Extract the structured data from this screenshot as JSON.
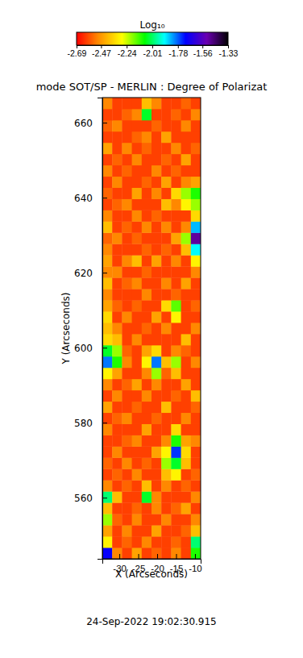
{
  "chart_data": {
    "type": "heatmap",
    "title": "mode SOT/SP - MERLIN : Degree of Polarizat",
    "annotation": "24-Sep-2022 19:02:30.915",
    "x_label": "X (Arcseconds)",
    "y_label": "Y (Arcseconds)",
    "colorbar_title": "Log₁₀",
    "color_range": [
      -2.69,
      -1.33
    ],
    "color_ticks": [
      -2.69,
      -2.47,
      -2.24,
      -2.01,
      -1.78,
      -1.56,
      -1.33
    ],
    "xlim": [
      -34.5,
      -8.5
    ],
    "ylim": [
      543.7,
      666.7
    ],
    "xticks": [
      -30,
      -25,
      -20,
      -15,
      -10
    ],
    "yticks": [
      560,
      580,
      600,
      620,
      640,
      660
    ],
    "x": [
      -33.2,
      -30.6,
      -28.0,
      -25.4,
      -22.8,
      -20.2,
      -17.6,
      -15.0,
      -12.4,
      -9.8
    ],
    "y": [
      545.2,
      548.2,
      551.2,
      554.2,
      557.2,
      560.2,
      563.2,
      566.2,
      569.2,
      572.2,
      575.2,
      578.2,
      581.2,
      584.2,
      587.2,
      590.2,
      593.2,
      596.2,
      599.2,
      602.2,
      605.2,
      608.2,
      611.2,
      614.2,
      617.2,
      620.2,
      623.2,
      626.2,
      629.2,
      632.2,
      635.2,
      638.2,
      641.2,
      644.2,
      647.2,
      650.2,
      653.2,
      656.2,
      659.2,
      662.2,
      665.2
    ],
    "values": [
      [
        -1.7,
        -2.5,
        -2.6,
        -2.45,
        -2.6,
        -2.55,
        -2.6,
        -2.5,
        -2.6,
        -2.1
      ],
      [
        -2.3,
        -2.6,
        -2.55,
        -2.6,
        -2.5,
        -2.6,
        -2.6,
        -2.55,
        -2.6,
        -2.0
      ],
      [
        -2.45,
        -2.6,
        -2.5,
        -2.6,
        -2.6,
        -2.45,
        -2.6,
        -2.6,
        -2.55,
        -2.4
      ],
      [
        -2.2,
        -2.55,
        -2.6,
        -2.5,
        -2.6,
        -2.6,
        -2.5,
        -2.6,
        -2.6,
        -2.5
      ],
      [
        -2.4,
        -2.6,
        -2.6,
        -2.55,
        -2.6,
        -2.5,
        -2.6,
        -2.55,
        -2.45,
        -2.6
      ],
      [
        -2.0,
        -2.4,
        -2.6,
        -2.6,
        -2.05,
        -2.5,
        -2.6,
        -2.6,
        -2.6,
        -2.5
      ],
      [
        -2.5,
        -2.6,
        -2.55,
        -2.6,
        -2.4,
        -2.6,
        -2.5,
        -2.6,
        -2.55,
        -2.6
      ],
      [
        -2.6,
        -2.55,
        -2.6,
        -2.5,
        -2.6,
        -2.6,
        -2.4,
        -2.3,
        -2.6,
        -2.55
      ],
      [
        -2.55,
        -2.6,
        -2.5,
        -2.6,
        -2.55,
        -2.6,
        -2.2,
        -2.05,
        -2.4,
        -2.6
      ],
      [
        -2.6,
        -2.5,
        -2.6,
        -2.6,
        -2.6,
        -2.45,
        -2.3,
        -1.75,
        -2.35,
        -2.6
      ],
      [
        -2.6,
        -2.6,
        -2.55,
        -2.5,
        -2.6,
        -2.6,
        -2.5,
        -2.1,
        -2.45,
        -2.5
      ],
      [
        -2.5,
        -2.6,
        -2.6,
        -2.6,
        -2.45,
        -2.6,
        -2.6,
        -2.35,
        -2.6,
        -2.6
      ],
      [
        -2.6,
        -2.55,
        -2.5,
        -2.6,
        -2.6,
        -2.55,
        -2.6,
        -2.6,
        -2.5,
        -2.6
      ],
      [
        -2.45,
        -2.6,
        -2.6,
        -2.55,
        -2.6,
        -2.6,
        -2.4,
        -2.6,
        -2.6,
        -2.55
      ],
      [
        -2.6,
        -2.5,
        -2.6,
        -2.6,
        -2.5,
        -2.6,
        -2.6,
        -2.55,
        -2.6,
        -2.4
      ],
      [
        -2.5,
        -2.6,
        -2.55,
        -2.45,
        -2.6,
        -2.5,
        -2.6,
        -2.6,
        -2.45,
        -2.6
      ],
      [
        -2.3,
        -2.45,
        -2.6,
        -2.6,
        -2.5,
        -2.2,
        -2.55,
        -2.4,
        -2.6,
        -2.6
      ],
      [
        -1.8,
        -2.1,
        -2.5,
        -2.6,
        -2.3,
        -1.8,
        -2.4,
        -2.2,
        -2.6,
        -2.5
      ],
      [
        -2.05,
        -2.2,
        -2.55,
        -2.6,
        -2.45,
        -2.35,
        -2.6,
        -2.5,
        -2.55,
        -2.6
      ],
      [
        -2.35,
        -2.4,
        -2.6,
        -2.5,
        -2.6,
        -2.6,
        -2.6,
        -2.6,
        -2.4,
        -2.6
      ],
      [
        -2.4,
        -2.5,
        -2.6,
        -2.6,
        -2.55,
        -2.6,
        -2.5,
        -2.6,
        -2.6,
        -2.5
      ],
      [
        -2.35,
        -2.6,
        -2.5,
        -2.6,
        -2.6,
        -2.45,
        -2.6,
        -2.3,
        -2.6,
        -2.6
      ],
      [
        -2.45,
        -2.55,
        -2.6,
        -2.55,
        -2.6,
        -2.6,
        -2.35,
        -2.15,
        -2.6,
        -2.55
      ],
      [
        -2.5,
        -2.6,
        -2.6,
        -2.6,
        -2.5,
        -2.6,
        -2.6,
        -2.55,
        -2.6,
        -2.6
      ],
      [
        -2.4,
        -2.6,
        -2.55,
        -2.5,
        -2.6,
        -2.6,
        -2.5,
        -2.6,
        -2.45,
        -2.6
      ],
      [
        -2.5,
        -2.5,
        -2.6,
        -2.6,
        -2.55,
        -2.6,
        -2.6,
        -2.6,
        -2.6,
        -2.5
      ],
      [
        -2.45,
        -2.6,
        -2.5,
        -2.4,
        -2.6,
        -2.45,
        -2.6,
        -2.5,
        -2.6,
        -2.3
      ],
      [
        -2.5,
        -2.6,
        -2.6,
        -2.6,
        -2.55,
        -2.6,
        -2.55,
        -2.6,
        -2.4,
        -1.9
      ],
      [
        -2.55,
        -2.5,
        -2.6,
        -2.55,
        -2.6,
        -2.6,
        -2.6,
        -2.45,
        -2.2,
        -1.5
      ],
      [
        -2.4,
        -2.6,
        -2.55,
        -2.6,
        -2.5,
        -2.6,
        -2.5,
        -2.6,
        -2.5,
        -1.85
      ],
      [
        -2.5,
        -2.6,
        -2.6,
        -2.5,
        -2.6,
        -2.55,
        -2.6,
        -2.6,
        -2.6,
        -2.35
      ],
      [
        -2.6,
        -2.55,
        -2.5,
        -2.6,
        -2.6,
        -2.6,
        -2.4,
        -2.5,
        -2.3,
        -2.2
      ],
      [
        -2.55,
        -2.6,
        -2.6,
        -2.45,
        -2.6,
        -2.5,
        -2.6,
        -2.35,
        -2.2,
        -2.1
      ],
      [
        -2.6,
        -2.5,
        -2.6,
        -2.6,
        -2.55,
        -2.6,
        -2.45,
        -2.6,
        -2.5,
        -2.45
      ],
      [
        -2.5,
        -2.6,
        -2.55,
        -2.6,
        -2.6,
        -2.5,
        -2.6,
        -2.55,
        -2.6,
        -2.6
      ],
      [
        -2.6,
        -2.55,
        -2.6,
        -2.5,
        -2.6,
        -2.6,
        -2.55,
        -2.6,
        -2.45,
        -2.6
      ],
      [
        -2.45,
        -2.6,
        -2.5,
        -2.6,
        -2.55,
        -2.6,
        -2.6,
        -2.5,
        -2.6,
        -2.55
      ],
      [
        -2.6,
        -2.6,
        -2.6,
        -2.55,
        -2.5,
        -2.6,
        -2.45,
        -2.6,
        -2.6,
        -2.6
      ],
      [
        -2.55,
        -2.5,
        -2.6,
        -2.6,
        -2.6,
        -2.55,
        -2.6,
        -2.6,
        -2.5,
        -2.6
      ],
      [
        -2.6,
        -2.6,
        -2.55,
        -2.5,
        -2.05,
        -2.6,
        -2.6,
        -2.55,
        -2.6,
        -2.5
      ],
      [
        -2.5,
        -2.6,
        -2.6,
        -2.6,
        -2.4,
        -2.5,
        -2.6,
        -2.6,
        -2.55,
        -2.6
      ]
    ]
  }
}
